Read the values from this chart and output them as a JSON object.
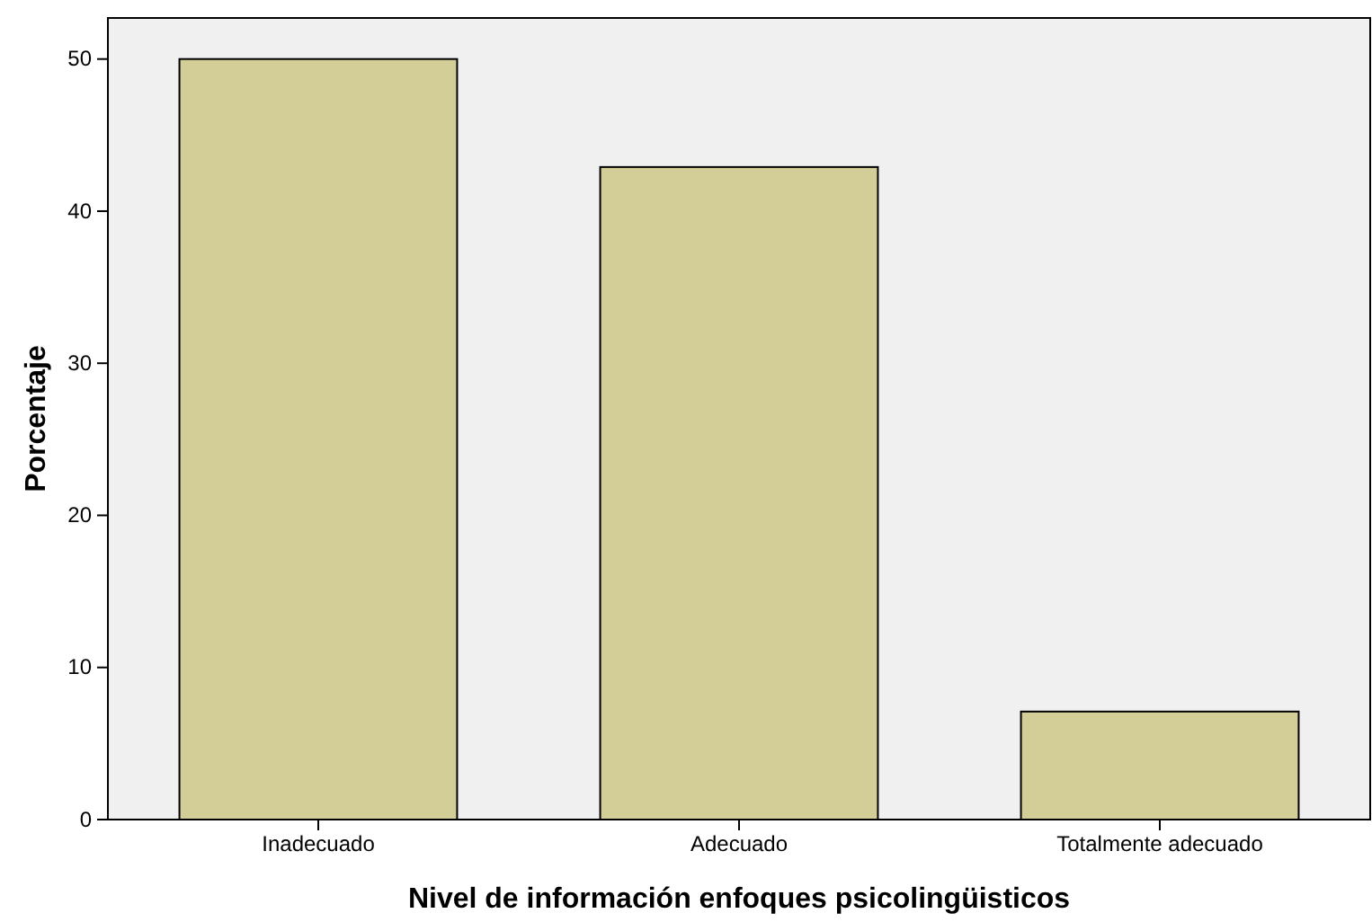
{
  "chart_data": {
    "type": "bar",
    "xlabel": "Nivel de información enfoques psicolingüisticos",
    "ylabel": "Porcentaje",
    "categories": [
      "Inadecuado",
      "Adecuado",
      "Totalmente adecuado"
    ],
    "values": [
      50,
      42.9,
      7.1
    ],
    "color": "#d3ce97",
    "ylim": [
      0,
      52.7
    ],
    "yticks": [
      0,
      10,
      20,
      30,
      40,
      50
    ],
    "grid": false
  }
}
